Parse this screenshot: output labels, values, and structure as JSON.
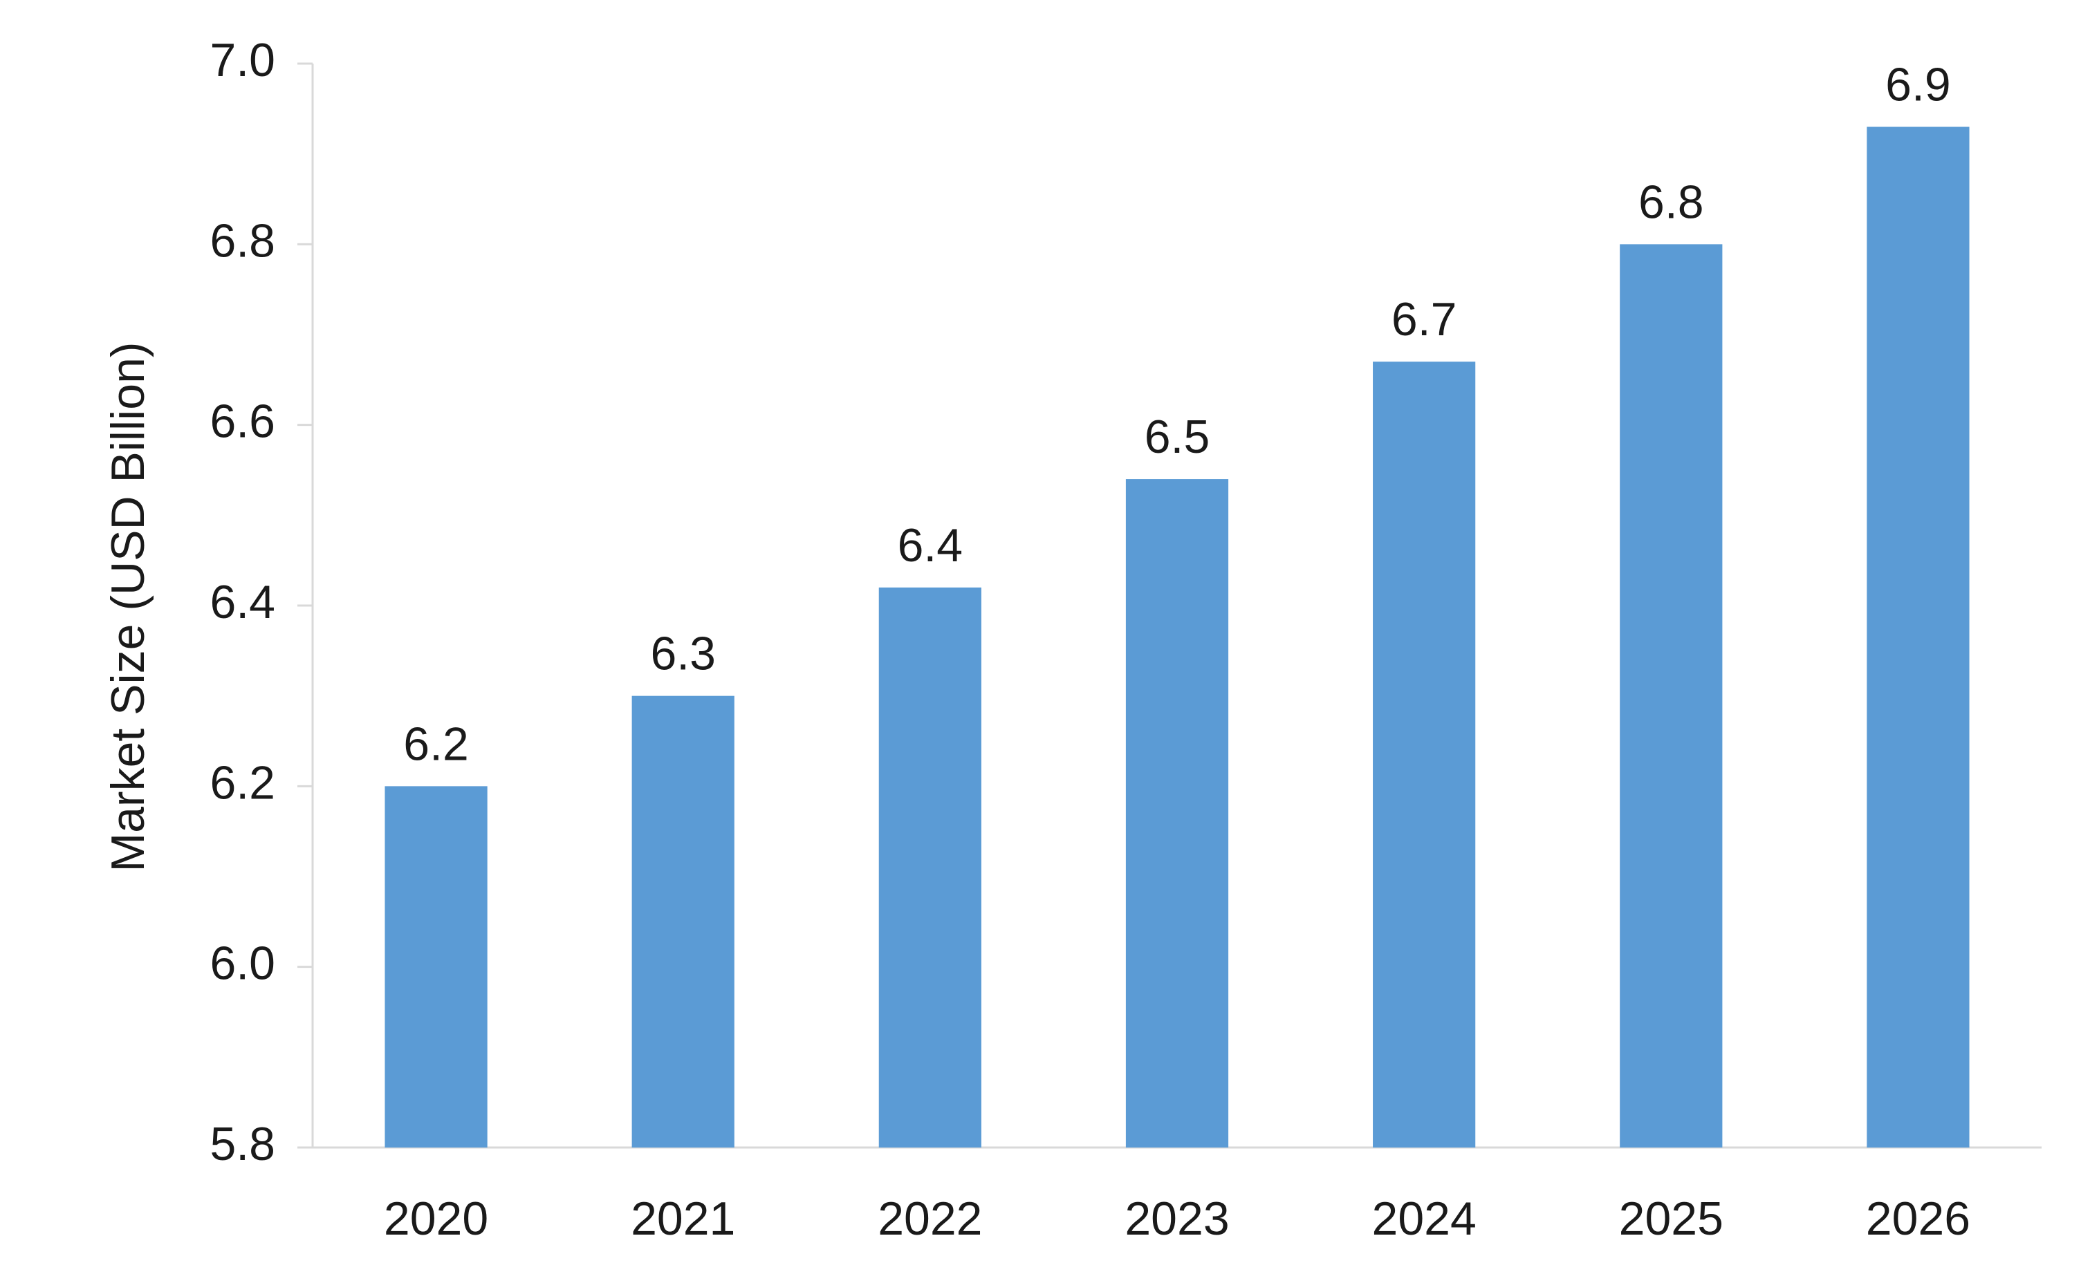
{
  "chart_data": {
    "type": "bar",
    "title": "",
    "xlabel": "",
    "ylabel": "Market Size (USD Billion)",
    "categories": [
      "2020",
      "2021",
      "2022",
      "2023",
      "2024",
      "2025",
      "2026"
    ],
    "values": [
      6.2,
      6.3,
      6.42,
      6.54,
      6.67,
      6.8,
      6.93
    ],
    "data_labels": [
      "6.2",
      "6.3",
      "6.4",
      "6.5",
      "6.7",
      "6.8",
      "6.9"
    ],
    "ylim": [
      5.8,
      7.0
    ],
    "yticks": [
      5.8,
      6.0,
      6.2,
      6.4,
      6.6,
      6.8,
      7.0
    ],
    "ytick_labels": [
      "5.8",
      "6.0",
      "6.2",
      "6.4",
      "6.6",
      "6.8",
      "7.0"
    ],
    "grid": false,
    "legend": "none",
    "bar_color": "#5B9BD5",
    "axis_color": "#D9D9D9"
  }
}
